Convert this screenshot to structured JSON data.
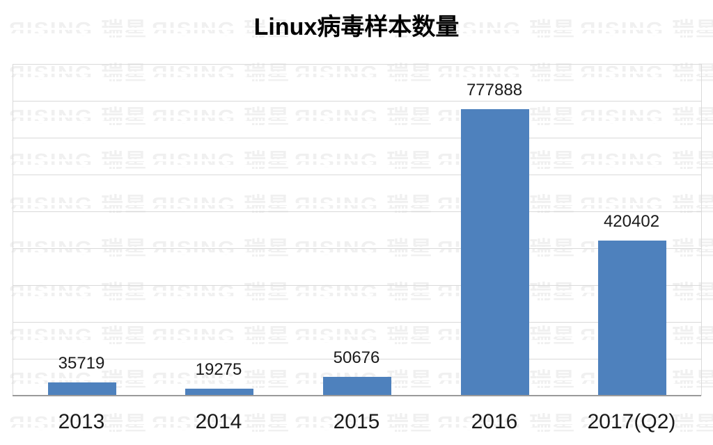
{
  "title": "Linux病毒样本数量",
  "watermark": {
    "text": "ЯISING 瑞星"
  },
  "chart_data": {
    "type": "bar",
    "title": "Linux病毒样本数量",
    "categories": [
      "2013",
      "2014",
      "2015",
      "2016",
      "2017(Q2)"
    ],
    "values": [
      35719,
      19275,
      50676,
      777888,
      420402
    ],
    "data_labels": [
      "35719",
      "19275",
      "50676",
      "777888",
      "420402"
    ],
    "xlabel": "",
    "ylabel": "",
    "ylim": [
      0,
      900000
    ],
    "gridline_step": 100000,
    "grid": "horizontal-only",
    "y_tick_labels": "none",
    "legend_position": "none",
    "colors": {
      "bar": "#4E81BD",
      "gridline": "#d9d9d9",
      "axis_line": "#9a9a9a",
      "watermark": "#f0f0f0",
      "text": "#1a1a1a",
      "background": "#ffffff"
    }
  }
}
